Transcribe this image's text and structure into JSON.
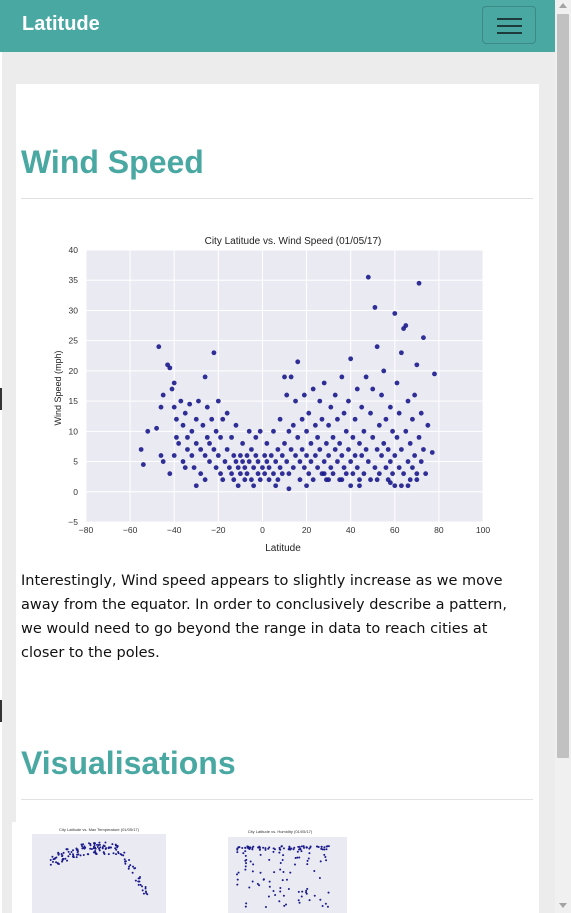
{
  "navbar": {
    "brand": "Latitude",
    "toggle_icon": "hamburger-icon"
  },
  "colors": {
    "accent": "#4aa8a3",
    "point": "#1a1a8c",
    "plot_bg": "#eaeaf2"
  },
  "section1": {
    "title": "Wind Speed",
    "description": "Interestingly, Wind speed appears to slightly increase as we move away from the equator. In order to conclusively describe a pattern, we would need to go beyond the range in data to reach cities at closer to the poles."
  },
  "section2": {
    "title": "Visualisations",
    "thumb1_title": "City Latitude vs. Max Temperature (01/05/17)",
    "thumb2_title": "City Latitude vs. Humidity (01/05/17)"
  },
  "chart_data": {
    "type": "scatter",
    "title": "City Latitude vs. Wind Speed (01/05/17)",
    "xlabel": "Latitude",
    "ylabel": "Wind Speed (mph)",
    "xlim": [
      -80,
      100
    ],
    "ylim": [
      -5,
      40
    ],
    "xticks": [
      -80,
      -60,
      -40,
      -20,
      0,
      20,
      40,
      60,
      80,
      100
    ],
    "yticks": [
      -5,
      0,
      5,
      10,
      15,
      20,
      25,
      30,
      35,
      40
    ],
    "grid": true,
    "points": [
      [
        -55,
        7
      ],
      [
        -54,
        4.5
      ],
      [
        -52,
        10
      ],
      [
        -48,
        10.5
      ],
      [
        -47,
        24
      ],
      [
        -46,
        14
      ],
      [
        -46,
        6
      ],
      [
        -45,
        16
      ],
      [
        -45,
        5
      ],
      [
        -43,
        21
      ],
      [
        -42,
        20.5
      ],
      [
        -42,
        3
      ],
      [
        -41,
        17
      ],
      [
        -40,
        18
      ],
      [
        -40,
        14
      ],
      [
        -39,
        9
      ],
      [
        -39,
        12
      ],
      [
        -38,
        8
      ],
      [
        -37,
        15
      ],
      [
        -36,
        11
      ],
      [
        -36,
        5
      ],
      [
        -35,
        13
      ],
      [
        -34,
        9
      ],
      [
        -34,
        7
      ],
      [
        -33,
        14.5
      ],
      [
        -32,
        10
      ],
      [
        -32,
        6
      ],
      [
        -31,
        4
      ],
      [
        -30,
        12
      ],
      [
        -30,
        8
      ],
      [
        -29,
        15
      ],
      [
        -28,
        7
      ],
      [
        -28,
        3
      ],
      [
        -27,
        11
      ],
      [
        -26,
        6
      ],
      [
        -26,
        19
      ],
      [
        -25,
        9
      ],
      [
        -25,
        14
      ],
      [
        -24,
        5
      ],
      [
        -24,
        8
      ],
      [
        -23,
        12
      ],
      [
        -22,
        7
      ],
      [
        -22,
        23
      ],
      [
        -21,
        4
      ],
      [
        -21,
        10
      ],
      [
        -20,
        6
      ],
      [
        -20,
        15
      ],
      [
        -19,
        3
      ],
      [
        -19,
        9
      ],
      [
        -18,
        12
      ],
      [
        -18,
        2
      ],
      [
        -17,
        5
      ],
      [
        -16,
        7
      ],
      [
        -16,
        13
      ],
      [
        -15,
        4
      ],
      [
        -14,
        3
      ],
      [
        -14,
        9
      ],
      [
        -13,
        6
      ],
      [
        -13,
        2
      ],
      [
        -12,
        5
      ],
      [
        -12,
        11
      ],
      [
        -11,
        4
      ],
      [
        -11,
        1
      ],
      [
        -10,
        6
      ],
      [
        -10,
        3
      ],
      [
        -9,
        8
      ],
      [
        -9,
        5
      ],
      [
        -8,
        2
      ],
      [
        -8,
        4
      ],
      [
        -7,
        6
      ],
      [
        -7,
        3
      ],
      [
        -6,
        10
      ],
      [
        -6,
        5
      ],
      [
        -5,
        2
      ],
      [
        -5,
        7
      ],
      [
        -4,
        4
      ],
      [
        -4,
        1
      ],
      [
        -3,
        6
      ],
      [
        -3,
        9
      ],
      [
        -2,
        3
      ],
      [
        -2,
        5
      ],
      [
        -1,
        10
      ],
      [
        -1,
        2
      ],
      [
        0,
        4
      ],
      [
        1,
        6
      ],
      [
        1,
        3
      ],
      [
        2,
        5
      ],
      [
        2,
        8
      ],
      [
        3,
        2
      ],
      [
        3,
        4
      ],
      [
        4,
        6
      ],
      [
        5,
        3
      ],
      [
        5,
        10
      ],
      [
        6,
        5
      ],
      [
        7,
        2
      ],
      [
        7,
        7
      ],
      [
        8,
        4
      ],
      [
        8,
        12
      ],
      [
        9,
        3
      ],
      [
        9,
        6
      ],
      [
        10,
        8
      ],
      [
        10,
        19
      ],
      [
        11,
        5
      ],
      [
        11,
        16
      ],
      [
        12,
        10
      ],
      [
        12,
        3
      ],
      [
        13,
        7
      ],
      [
        13,
        19
      ],
      [
        14,
        11
      ],
      [
        14,
        4
      ],
      [
        15,
        6
      ],
      [
        15,
        15
      ],
      [
        16,
        21.5
      ],
      [
        16,
        9
      ],
      [
        17,
        5
      ],
      [
        17,
        2
      ],
      [
        18,
        12
      ],
      [
        18,
        7
      ],
      [
        19,
        4
      ],
      [
        19,
        16
      ],
      [
        20,
        6
      ],
      [
        20,
        10
      ],
      [
        21,
        3
      ],
      [
        21,
        13
      ],
      [
        22,
        5
      ],
      [
        22,
        8
      ],
      [
        23,
        17
      ],
      [
        23,
        2
      ],
      [
        24,
        6
      ],
      [
        24,
        11
      ],
      [
        25,
        4
      ],
      [
        25,
        9
      ],
      [
        26,
        15
      ],
      [
        26,
        7
      ],
      [
        27,
        3
      ],
      [
        27,
        12
      ],
      [
        28,
        5
      ],
      [
        28,
        18
      ],
      [
        29,
        8
      ],
      [
        29,
        2
      ],
      [
        30,
        11
      ],
      [
        30,
        6
      ],
      [
        31,
        4
      ],
      [
        31,
        14
      ],
      [
        32,
        9
      ],
      [
        32,
        3
      ],
      [
        33,
        7
      ],
      [
        33,
        16
      ],
      [
        34,
        5
      ],
      [
        34,
        12
      ],
      [
        35,
        2
      ],
      [
        35,
        8
      ],
      [
        36,
        19
      ],
      [
        36,
        6
      ],
      [
        37,
        4
      ],
      [
        37,
        13
      ],
      [
        38,
        10
      ],
      [
        38,
        3
      ],
      [
        39,
        7
      ],
      [
        39,
        15
      ],
      [
        40,
        5
      ],
      [
        40,
        22
      ],
      [
        41,
        9
      ],
      [
        41,
        3
      ],
      [
        42,
        12
      ],
      [
        42,
        6
      ],
      [
        43,
        17
      ],
      [
        43,
        4
      ],
      [
        44,
        8
      ],
      [
        44,
        2
      ],
      [
        45,
        14
      ],
      [
        45,
        6
      ],
      [
        46,
        10
      ],
      [
        46,
        3
      ],
      [
        47,
        19
      ],
      [
        47,
        7
      ],
      [
        48,
        35.5
      ],
      [
        48,
        5
      ],
      [
        49,
        13
      ],
      [
        49,
        2
      ],
      [
        50,
        9
      ],
      [
        50,
        17
      ],
      [
        51,
        4
      ],
      [
        51,
        30.5
      ],
      [
        52,
        24
      ],
      [
        52,
        7
      ],
      [
        53,
        11
      ],
      [
        53,
        3
      ],
      [
        54,
        16
      ],
      [
        54,
        6
      ],
      [
        55,
        8
      ],
      [
        55,
        20
      ],
      [
        56,
        4
      ],
      [
        56,
        12
      ],
      [
        57,
        2
      ],
      [
        57,
        7
      ],
      [
        58,
        14
      ],
      [
        58,
        5
      ],
      [
        59,
        10
      ],
      [
        59,
        3
      ],
      [
        60,
        29.5
      ],
      [
        60,
        6
      ],
      [
        61,
        18
      ],
      [
        61,
        9
      ],
      [
        62,
        4
      ],
      [
        62,
        13
      ],
      [
        63,
        23
      ],
      [
        63,
        7
      ],
      [
        64,
        27
      ],
      [
        64,
        3
      ],
      [
        65,
        27.5
      ],
      [
        65,
        10
      ],
      [
        66,
        5
      ],
      [
        66,
        15
      ],
      [
        67,
        2
      ],
      [
        67,
        8
      ],
      [
        68,
        12
      ],
      [
        68,
        4
      ],
      [
        69,
        6
      ],
      [
        69,
        16
      ],
      [
        70,
        21
      ],
      [
        70,
        3
      ],
      [
        71,
        34.5
      ],
      [
        71,
        9
      ],
      [
        72,
        5
      ],
      [
        72,
        13
      ],
      [
        73,
        25.5
      ],
      [
        73,
        7
      ],
      [
        74,
        3
      ],
      [
        75,
        11
      ],
      [
        77,
        6.5
      ],
      [
        78,
        19.5
      ],
      [
        60,
        1
      ],
      [
        58,
        1.5
      ],
      [
        52,
        2
      ],
      [
        44,
        1
      ],
      [
        30,
        2
      ],
      [
        20,
        1
      ],
      [
        12,
        0.5
      ],
      [
        -30,
        1
      ],
      [
        -26,
        2
      ],
      [
        -35,
        4
      ],
      [
        -40,
        6
      ],
      [
        66,
        1
      ],
      [
        70,
        2
      ],
      [
        63,
        1
      ],
      [
        40,
        1
      ],
      [
        36,
        2
      ],
      [
        28,
        3
      ],
      [
        6,
        1
      ]
    ]
  }
}
